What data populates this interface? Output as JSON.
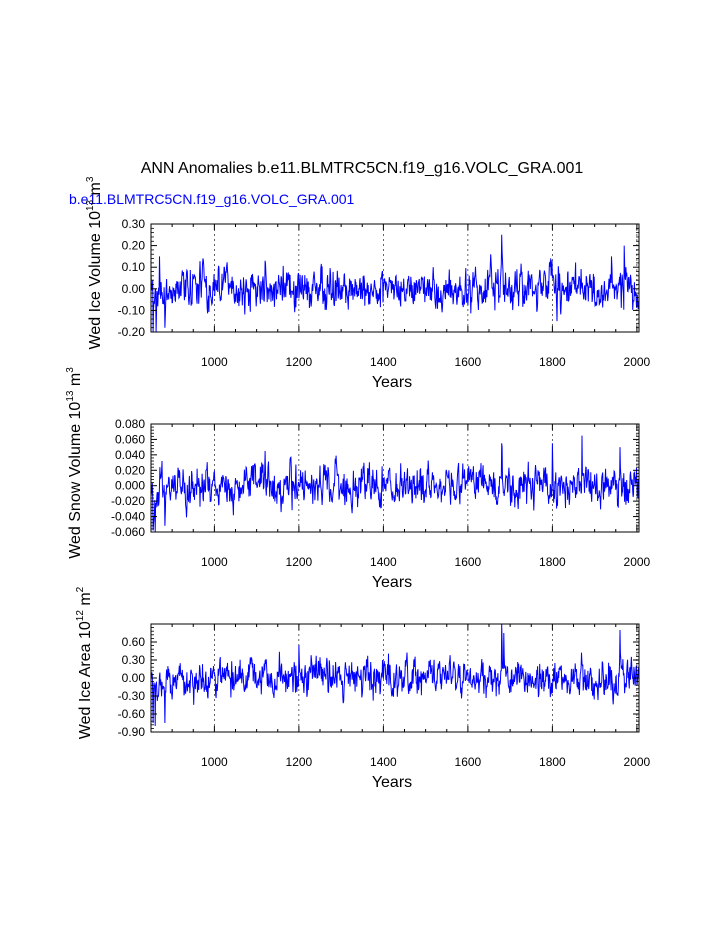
{
  "title": "ANN Anomalies b.e11.BLMTRC5CN.f19_g16.VOLC_GRA.001",
  "colors": {
    "series": "#0000ff",
    "axis": "#000000",
    "grid": "#000000",
    "legend": "#0000ff"
  },
  "chart_data": [
    {
      "type": "line",
      "legend": "b.e11.BLMTRC5CN.f19_g16.VOLC_GRA.001",
      "ylabel": {
        "main": "Wed Ice Volume 10",
        "exp": "13",
        "unit": " m",
        "unitexp": "3"
      },
      "xlabel": "Years",
      "xlim": [
        850,
        2005
      ],
      "ylim": [
        -0.2,
        0.3
      ],
      "xticks": [
        1000,
        1200,
        1400,
        1600,
        1800,
        2000
      ],
      "xtick_labels": [
        "1000",
        "1200",
        "1400",
        "1600",
        "1800",
        "2000"
      ],
      "yticks": [
        -0.2,
        -0.1,
        0.0,
        0.1,
        0.2,
        0.3
      ],
      "ytick_labels": [
        "-0.20",
        "-0.10",
        "0.00",
        "0.10",
        "0.20",
        "0.30"
      ],
      "grid": "vertical-dashed",
      "series": [
        {
          "name": "b.e11.BLMTRC5CN.f19_g16.VOLC_GRA.001",
          "x_start": 850,
          "x_end": 2005,
          "seed": 11,
          "amp": 0.05,
          "peaks": [
            [
              855,
              -0.2
            ],
            [
              862,
              -0.2
            ],
            [
              870,
              0.15
            ],
            [
              883,
              -0.18
            ],
            [
              1120,
              0.13
            ],
            [
              1680,
              0.25
            ],
            [
              1900,
              -0.05
            ],
            [
              1970,
              0.2
            ],
            [
              1940,
              0.15
            ]
          ]
        }
      ]
    },
    {
      "type": "line",
      "ylabel": {
        "main": "Wed Snow Volume 10",
        "exp": "13",
        "unit": " m",
        "unitexp": "3"
      },
      "xlabel": "Years",
      "xlim": [
        850,
        2005
      ],
      "ylim": [
        -0.06,
        0.08
      ],
      "xticks": [
        1000,
        1200,
        1400,
        1600,
        1800,
        2000
      ],
      "xtick_labels": [
        "1000",
        "1200",
        "1400",
        "1600",
        "1800",
        "2000"
      ],
      "yticks": [
        -0.06,
        -0.04,
        -0.02,
        0.0,
        0.02,
        0.04,
        0.06,
        0.08
      ],
      "ytick_labels": [
        "-0.060",
        "-0.040",
        "-0.020",
        "0.000",
        "0.020",
        "0.040",
        "0.060",
        "0.080"
      ],
      "grid": "vertical-dashed",
      "series": [
        {
          "name": "Wed Snow Volume",
          "x_start": 850,
          "x_end": 2005,
          "seed": 23,
          "amp": 0.014,
          "peaks": [
            [
              855,
              -0.058
            ],
            [
              860,
              -0.06
            ],
            [
              883,
              -0.052
            ],
            [
              1120,
              0.045
            ],
            [
              1870,
              0.065
            ],
            [
              1680,
              0.055
            ],
            [
              1800,
              0.055
            ],
            [
              1960,
              0.05
            ]
          ]
        }
      ]
    },
    {
      "type": "line",
      "ylabel": {
        "main": "Wed Ice Area 10",
        "exp": "12",
        "unit": " m",
        "unitexp": "2"
      },
      "xlabel": "Years",
      "xlim": [
        850,
        2005
      ],
      "ylim": [
        -0.9,
        0.9
      ],
      "xticks": [
        1000,
        1200,
        1400,
        1600,
        1800,
        2000
      ],
      "xtick_labels": [
        "1000",
        "1200",
        "1400",
        "1600",
        "1800",
        "2000"
      ],
      "yticks": [
        -0.9,
        -0.6,
        -0.3,
        0.0,
        0.3,
        0.6
      ],
      "ytick_labels": [
        "-0.90",
        "-0.60",
        "-0.30",
        "0.00",
        "0.30",
        "0.60"
      ],
      "grid": "vertical-dashed",
      "series": [
        {
          "name": "Wed Ice Area",
          "x_start": 850,
          "x_end": 2005,
          "seed": 37,
          "amp": 0.17,
          "peaks": [
            [
              855,
              -0.75
            ],
            [
              860,
              -0.8
            ],
            [
              883,
              -0.75
            ],
            [
              1680,
              0.9
            ],
            [
              1685,
              0.75
            ],
            [
              1960,
              0.8
            ],
            [
              1200,
              0.55
            ]
          ]
        }
      ]
    }
  ]
}
